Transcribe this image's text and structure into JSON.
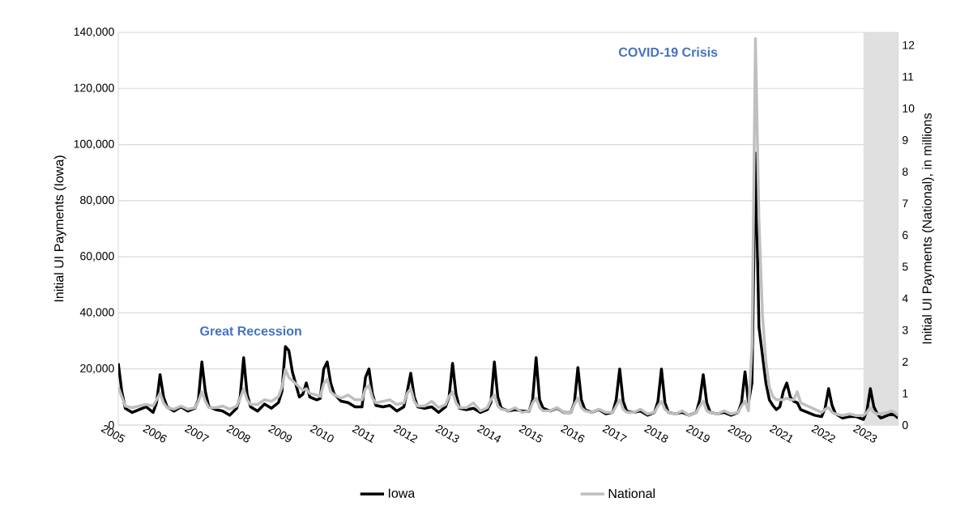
{
  "chart_data": {
    "type": "line",
    "ylabel": "Initial UI Payments (Iowa)",
    "y2label": "Initial UI Payments (National), in millions",
    "xlim": [
      "2005-01",
      "2023-09"
    ],
    "xticks": [
      "2005",
      "2006",
      "2007",
      "2008",
      "2009",
      "2010",
      "2011",
      "2012",
      "2013",
      "2014",
      "2015",
      "2016",
      "2017",
      "2018",
      "2019",
      "2020",
      "2021",
      "2022",
      "2023"
    ],
    "ylim": [
      0,
      140000
    ],
    "yticks": [
      0,
      {
        "value": 20000,
        "label": "20,000"
      },
      {
        "value": 40000,
        "label": "40,000"
      },
      {
        "value": 60000,
        "label": "60,000"
      },
      {
        "value": 80000,
        "label": "80,000"
      },
      {
        "value": 100000,
        "label": "100,000"
      },
      {
        "value": 120000,
        "label": "120,000"
      },
      {
        "value": 140000,
        "label": "140,000"
      }
    ],
    "y2lim": [
      0,
      12.4
    ],
    "y2ticks": [
      0,
      1,
      2,
      3,
      4,
      5,
      6,
      7,
      8,
      9,
      10,
      11,
      12
    ],
    "grid": "y",
    "legend": "bottom",
    "bands": [
      {
        "axis": "x",
        "from": "2022-11",
        "to": "2023-09",
        "color": "#e0e0e0"
      }
    ],
    "annotations": [
      "Great Recession",
      "COVID-19 Crisis"
    ],
    "series": [
      {
        "name": "Iowa",
        "color": "#000000",
        "x": [
          "2005-01",
          "2005-02",
          "2005-03",
          "2005-05",
          "2005-07",
          "2005-09",
          "2005-11",
          "2005-12",
          "2006-01",
          "2006-02",
          "2006-03",
          "2006-05",
          "2006-07",
          "2006-09",
          "2006-11",
          "2006-12",
          "2007-01",
          "2007-02",
          "2007-03",
          "2007-05",
          "2007-07",
          "2007-09",
          "2007-11",
          "2007-12",
          "2008-01",
          "2008-02",
          "2008-03",
          "2008-05",
          "2008-07",
          "2008-09",
          "2008-11",
          "2008-12",
          "2009-01",
          "2009-02",
          "2009-03",
          "2009-05",
          "2009-06",
          "2009-07",
          "2009-08",
          "2009-10",
          "2009-11",
          "2009-12",
          "2010-01",
          "2010-02",
          "2010-03",
          "2010-05",
          "2010-07",
          "2010-09",
          "2010-11",
          "2010-12",
          "2011-01",
          "2011-02",
          "2011-03",
          "2011-05",
          "2011-07",
          "2011-09",
          "2011-11",
          "2011-12",
          "2012-01",
          "2012-02",
          "2012-03",
          "2012-05",
          "2012-07",
          "2012-09",
          "2012-11",
          "2012-12",
          "2013-01",
          "2013-02",
          "2013-03",
          "2013-05",
          "2013-07",
          "2013-09",
          "2013-11",
          "2013-12",
          "2014-01",
          "2014-02",
          "2014-03",
          "2014-05",
          "2014-07",
          "2014-09",
          "2014-11",
          "2014-12",
          "2015-01",
          "2015-02",
          "2015-03",
          "2015-05",
          "2015-07",
          "2015-09",
          "2015-11",
          "2015-12",
          "2016-01",
          "2016-02",
          "2016-03",
          "2016-05",
          "2016-07",
          "2016-09",
          "2016-11",
          "2016-12",
          "2017-01",
          "2017-02",
          "2017-03",
          "2017-05",
          "2017-07",
          "2017-09",
          "2017-11",
          "2017-12",
          "2018-01",
          "2018-02",
          "2018-03",
          "2018-05",
          "2018-07",
          "2018-09",
          "2018-11",
          "2018-12",
          "2019-01",
          "2019-02",
          "2019-03",
          "2019-05",
          "2019-07",
          "2019-09",
          "2019-11",
          "2019-12",
          "2020-01",
          "2020-02",
          "2020-03",
          "2020-04",
          "2020-05",
          "2020-06",
          "2020-07",
          "2020-08",
          "2020-09",
          "2020-10",
          "2020-11",
          "2020-12",
          "2021-01",
          "2021-02",
          "2021-03",
          "2021-04",
          "2021-05",
          "2021-07",
          "2021-09",
          "2021-11",
          "2021-12",
          "2022-01",
          "2022-02",
          "2022-03",
          "2022-05",
          "2022-07",
          "2022-09",
          "2022-11",
          "2022-12",
          "2023-01",
          "2023-02",
          "2023-03",
          "2023-04",
          "2023-06",
          "2023-07",
          "2023-08",
          "2023-09"
        ],
        "values": [
          22000,
          12000,
          6000,
          4500,
          5500,
          6500,
          4500,
          8000,
          18000,
          10000,
          6500,
          5000,
          6500,
          5000,
          6000,
          9000,
          22500,
          12000,
          6500,
          5500,
          5000,
          3500,
          6000,
          10000,
          24000,
          11000,
          6500,
          5000,
          7500,
          6000,
          8000,
          12000,
          28000,
          26500,
          19000,
          10000,
          11000,
          15000,
          10000,
          9000,
          9500,
          20000,
          22500,
          15000,
          11000,
          8500,
          8000,
          6500,
          6500,
          17000,
          20000,
          11000,
          7000,
          6500,
          7000,
          5000,
          6500,
          12000,
          18500,
          10000,
          6500,
          6000,
          6500,
          4500,
          6500,
          10000,
          22000,
          11000,
          6000,
          5500,
          6000,
          4500,
          5500,
          8000,
          22500,
          10000,
          6000,
          5000,
          5500,
          5000,
          5000,
          9000,
          24000,
          9000,
          6000,
          5000,
          6000,
          4500,
          4500,
          8000,
          20500,
          9000,
          5500,
          4500,
          5500,
          4000,
          4500,
          9000,
          20000,
          8500,
          5000,
          4500,
          5000,
          3500,
          4500,
          8500,
          20000,
          8000,
          4500,
          4000,
          4500,
          3500,
          4500,
          9000,
          18000,
          8000,
          4500,
          4000,
          4500,
          3500,
          4500,
          8000,
          19000,
          8000,
          15000,
          97000,
          35000,
          25000,
          15000,
          9000,
          7000,
          5500,
          6500,
          12000,
          15000,
          10000,
          8500,
          8000,
          5500,
          4500,
          3500,
          3000,
          6000,
          13000,
          7000,
          4000,
          2500,
          3000,
          3000,
          2000,
          5000,
          13000,
          6500,
          4000,
          2500,
          3500,
          4000,
          3500,
          2500
        ]
      },
      {
        "name": "National",
        "color": "#bfbfbf",
        "axis": "y2",
        "x": [
          "2005-01",
          "2005-02",
          "2005-03",
          "2005-05",
          "2005-07",
          "2005-09",
          "2005-11",
          "2005-12",
          "2006-01",
          "2006-02",
          "2006-03",
          "2006-05",
          "2006-07",
          "2006-09",
          "2006-11",
          "2006-12",
          "2007-01",
          "2007-02",
          "2007-03",
          "2007-05",
          "2007-07",
          "2007-09",
          "2007-11",
          "2007-12",
          "2008-01",
          "2008-02",
          "2008-03",
          "2008-05",
          "2008-07",
          "2008-09",
          "2008-11",
          "2008-12",
          "2009-01",
          "2009-02",
          "2009-03",
          "2009-05",
          "2009-06",
          "2009-07",
          "2009-08",
          "2009-10",
          "2009-11",
          "2009-12",
          "2010-01",
          "2010-02",
          "2010-03",
          "2010-05",
          "2010-07",
          "2010-09",
          "2010-11",
          "2010-12",
          "2011-01",
          "2011-02",
          "2011-03",
          "2011-05",
          "2011-07",
          "2011-09",
          "2011-11",
          "2011-12",
          "2012-01",
          "2012-02",
          "2012-03",
          "2012-05",
          "2012-07",
          "2012-09",
          "2012-11",
          "2012-12",
          "2013-01",
          "2013-02",
          "2013-03",
          "2013-05",
          "2013-07",
          "2013-09",
          "2013-11",
          "2013-12",
          "2014-01",
          "2014-02",
          "2014-03",
          "2014-05",
          "2014-07",
          "2014-09",
          "2014-11",
          "2014-12",
          "2015-01",
          "2015-02",
          "2015-03",
          "2015-05",
          "2015-07",
          "2015-09",
          "2015-11",
          "2015-12",
          "2016-01",
          "2016-02",
          "2016-03",
          "2016-05",
          "2016-07",
          "2016-09",
          "2016-11",
          "2016-12",
          "2017-01",
          "2017-02",
          "2017-03",
          "2017-05",
          "2017-07",
          "2017-09",
          "2017-11",
          "2017-12",
          "2018-01",
          "2018-02",
          "2018-03",
          "2018-05",
          "2018-07",
          "2018-09",
          "2018-11",
          "2018-12",
          "2019-01",
          "2019-02",
          "2019-03",
          "2019-05",
          "2019-07",
          "2019-09",
          "2019-11",
          "2019-12",
          "2020-01",
          "2020-02",
          "2020-03",
          "2020-04",
          "2020-05",
          "2020-06",
          "2020-07",
          "2020-08",
          "2020-09",
          "2020-10",
          "2020-11",
          "2020-12",
          "2021-01",
          "2021-02",
          "2021-03",
          "2021-04",
          "2021-05",
          "2021-07",
          "2021-09",
          "2021-11",
          "2021-12",
          "2022-01",
          "2022-02",
          "2022-03",
          "2022-05",
          "2022-07",
          "2022-09",
          "2022-11",
          "2022-12",
          "2023-01",
          "2023-02",
          "2023-03",
          "2023-04",
          "2023-06",
          "2023-07",
          "2023-08",
          "2023-09"
        ],
        "values": [
          1.2,
          0.9,
          0.6,
          0.55,
          0.6,
          0.65,
          0.6,
          0.8,
          1.0,
          0.7,
          0.55,
          0.5,
          0.6,
          0.5,
          0.55,
          0.75,
          1.05,
          0.75,
          0.55,
          0.55,
          0.6,
          0.5,
          0.6,
          0.85,
          1.15,
          0.8,
          0.65,
          0.65,
          0.8,
          0.75,
          0.9,
          1.2,
          1.75,
          1.5,
          1.4,
          1.2,
          1.1,
          1.15,
          1.0,
          0.95,
          0.9,
          1.3,
          1.45,
          1.05,
          0.95,
          0.85,
          0.95,
          0.8,
          0.8,
          1.15,
          1.25,
          0.85,
          0.7,
          0.75,
          0.8,
          0.65,
          0.7,
          1.0,
          1.15,
          0.75,
          0.6,
          0.6,
          0.75,
          0.55,
          0.65,
          0.9,
          1.05,
          0.7,
          0.55,
          0.55,
          0.7,
          0.45,
          0.55,
          0.8,
          0.95,
          0.6,
          0.5,
          0.45,
          0.55,
          0.4,
          0.45,
          0.7,
          0.85,
          0.55,
          0.45,
          0.45,
          0.55,
          0.4,
          0.4,
          0.65,
          0.85,
          0.55,
          0.45,
          0.4,
          0.5,
          0.4,
          0.4,
          0.6,
          0.8,
          0.5,
          0.4,
          0.4,
          0.5,
          0.35,
          0.4,
          0.6,
          0.75,
          0.5,
          0.4,
          0.35,
          0.45,
          0.3,
          0.4,
          0.6,
          0.75,
          0.45,
          0.4,
          0.35,
          0.45,
          0.35,
          0.4,
          0.6,
          0.75,
          0.45,
          2.5,
          12.2,
          6.5,
          3.5,
          2.0,
          1.2,
          0.9,
          0.8,
          0.8,
          0.8,
          0.85,
          0.8,
          0.8,
          1.05,
          0.7,
          0.6,
          0.5,
          0.4,
          0.5,
          0.55,
          0.4,
          0.35,
          0.3,
          0.35,
          0.3,
          0.3,
          0.4,
          0.55,
          0.4,
          0.35,
          0.35,
          0.4,
          0.45,
          0.4,
          0.3
        ]
      }
    ]
  }
}
